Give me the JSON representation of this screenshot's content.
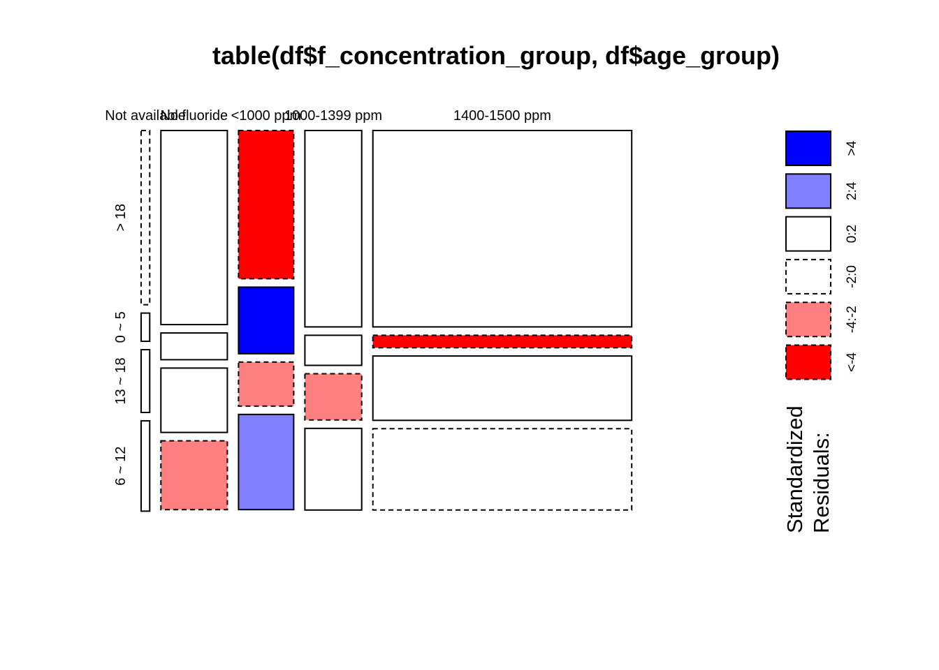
{
  "chart_data": {
    "type": "mosaic",
    "title": "table(df$f_concentration_group, df$age_group)",
    "columns": [
      "Not available",
      "No fluoride",
      "<1000 ppm",
      "1000-1399 ppm",
      "1400-1500 ppm"
    ],
    "rows": [
      "> 18",
      "0 ~ 5",
      "13 ~ 18",
      "6 ~ 12"
    ],
    "column_proportions": [
      0.016,
      0.124,
      0.103,
      0.106,
      0.483
    ],
    "cells": [
      {
        "column": "Not available",
        "row_proportions": [
          0.463,
          0.075,
          0.167,
          0.24
        ],
        "residual_class": [
          "-2:0",
          "0:2",
          "0:2",
          "0:2"
        ]
      },
      {
        "column": "No fluoride",
        "row_proportions": [
          0.516,
          0.071,
          0.171,
          0.183
        ],
        "residual_class": [
          "0:2",
          "0:2",
          "0:2",
          "-4:-2"
        ]
      },
      {
        "column": "<1000 ppm",
        "row_proportions": [
          0.394,
          0.177,
          0.117,
          0.253
        ],
        "residual_class": [
          "<-4",
          ">4",
          "-4:-2",
          "2:4"
        ]
      },
      {
        "column": "1000-1399 ppm",
        "row_proportions": [
          0.522,
          0.08,
          0.123,
          0.217
        ],
        "residual_class": [
          "0:2",
          "0:2",
          "-4:-2",
          "0:2"
        ]
      },
      {
        "column": "1400-1500 ppm",
        "row_proportions": [
          0.522,
          0.033,
          0.171,
          0.216
        ],
        "residual_class": [
          "0:2",
          "<-4",
          "0:2",
          "-2:0"
        ]
      }
    ],
    "legend": {
      "title_lines": [
        "Standardized",
        "Residuals:"
      ],
      "bins": [
        {
          "label": ">4",
          "color": "#0000ff",
          "dashed": false
        },
        {
          "label": "2:4",
          "color": "#8080ff",
          "dashed": false
        },
        {
          "label": "0:2",
          "color": "#ffffff",
          "dashed": false
        },
        {
          "label": "-2:0",
          "color": "#ffffff",
          "dashed": true
        },
        {
          "label": "-4:-2",
          "color": "#ff8080",
          "dashed": true
        },
        {
          "label": "<-4",
          "color": "#ff0000",
          "dashed": true
        }
      ]
    }
  }
}
